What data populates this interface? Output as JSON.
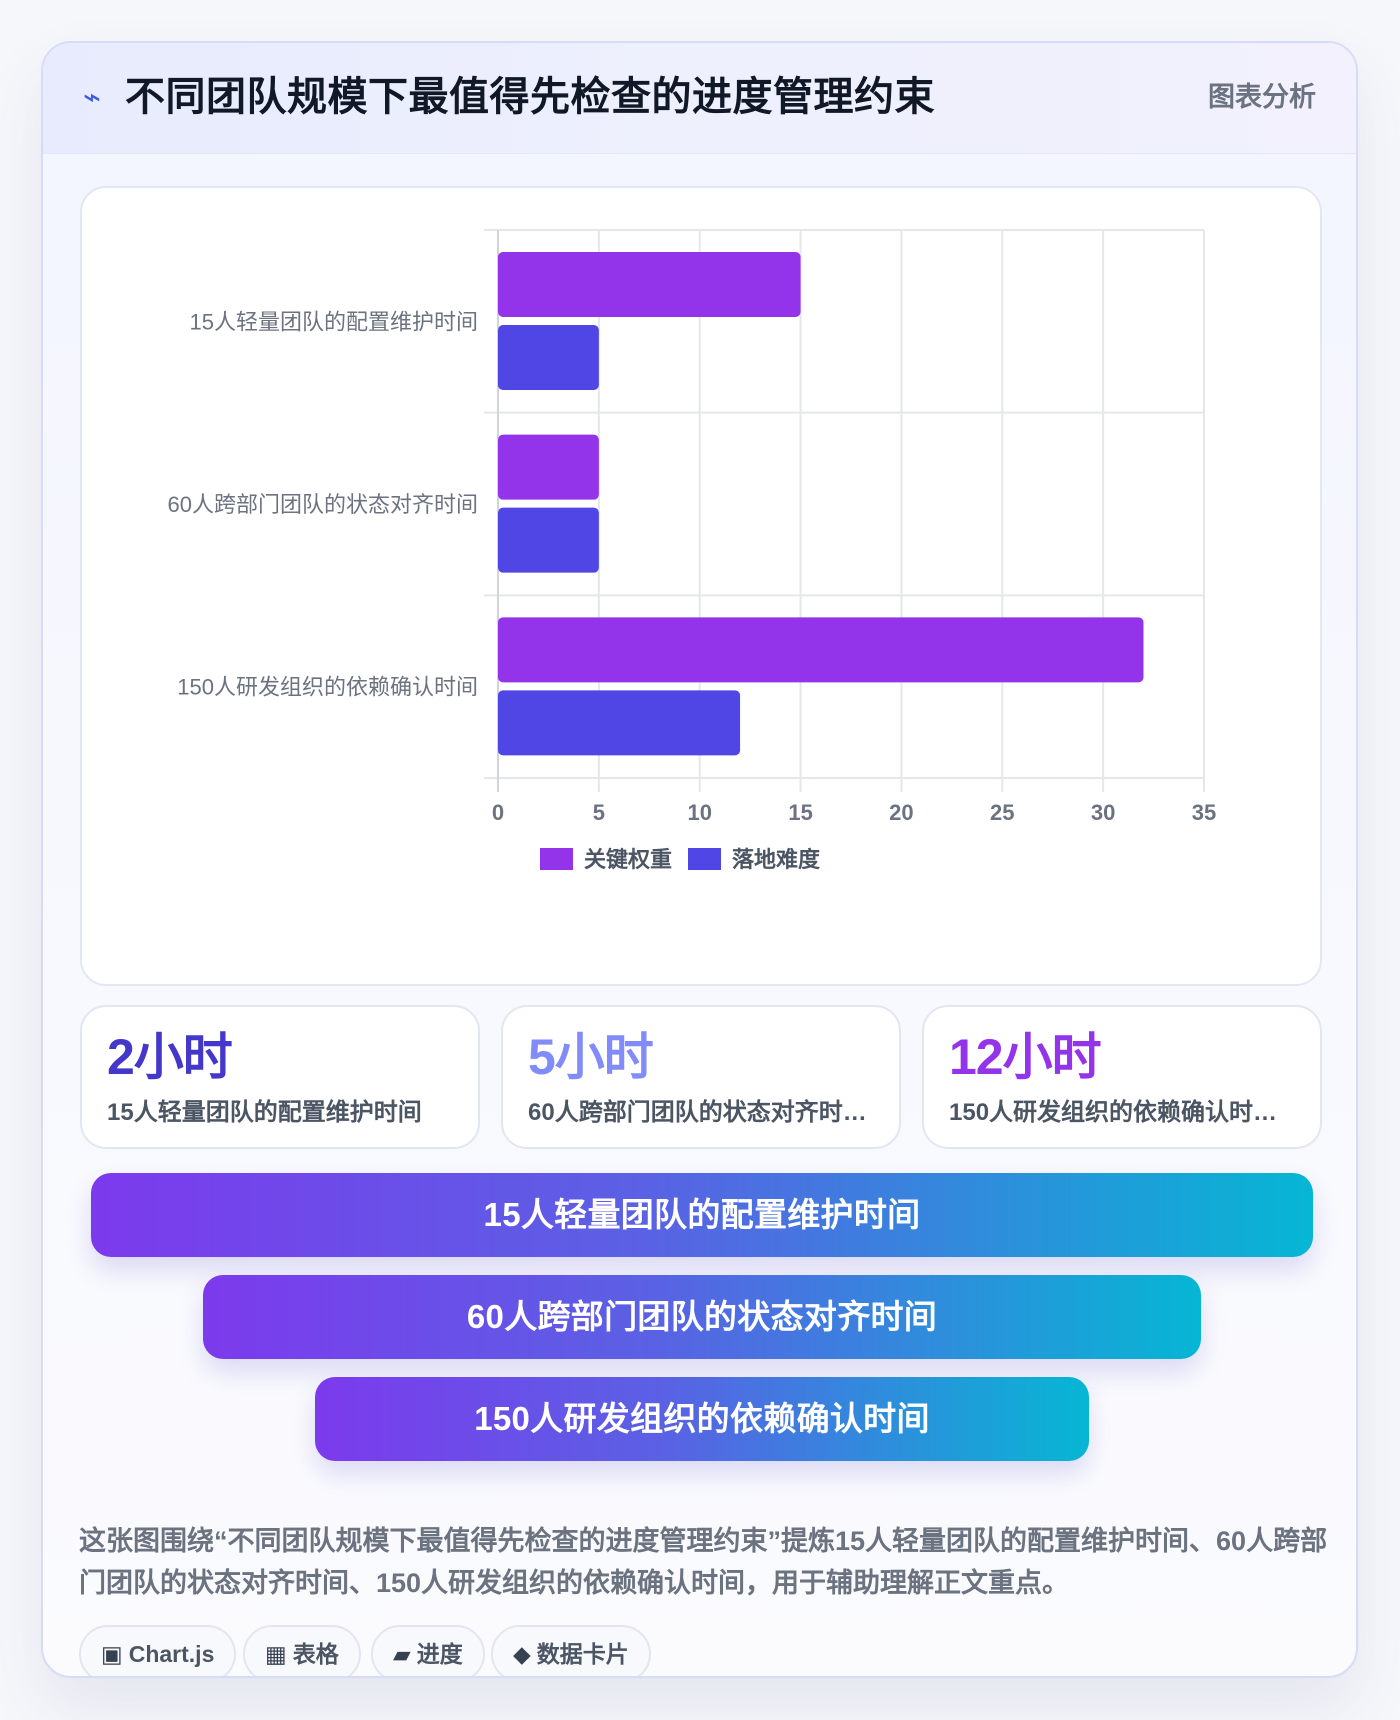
{
  "header": {
    "icon": "lightning-icon",
    "title": "不同团队规模下最值得先检查的进度管理约束",
    "tag": "图表分析"
  },
  "chart_data": {
    "type": "bar",
    "orientation": "horizontal",
    "categories": [
      "15人轻量团队的配置维护时间",
      "60人跨部门团队的状态对齐时间",
      "150人研发组织的依赖确认时间"
    ],
    "series": [
      {
        "name": "关键权重",
        "color": "#9333ea",
        "values": [
          15,
          5,
          32
        ]
      },
      {
        "name": "落地难度",
        "color": "#4f46e5",
        "values": [
          5,
          5,
          12
        ]
      }
    ],
    "xlim": [
      0,
      35
    ],
    "xticks": [
      "0",
      "5",
      "10",
      "15",
      "20",
      "25",
      "30",
      "35"
    ],
    "grid": true,
    "legend_position": "bottom"
  },
  "stats": [
    {
      "value": "2小时",
      "label": "15人轻量团队的配置维护时间",
      "color": "#4338ca"
    },
    {
      "value": "5小时",
      "label": "60人跨部门团队的状态对齐时…",
      "color": "#818cf8"
    },
    {
      "value": "12小时",
      "label": "150人研发组织的依赖确认时…",
      "color": "#9333ea"
    }
  ],
  "pills": [
    {
      "label": "15人轻量团队的配置维护时间"
    },
    {
      "label": "60人跨部门团队的状态对齐时间"
    },
    {
      "label": "150人研发组织的依赖确认时间"
    }
  ],
  "caption": "这张图围绕“不同团队规模下最值得先检查的进度管理约束”提炼15人轻量团队的配置维护时间、60人跨部门团队的状态对齐时间、150人研发组织的依赖确认时间，用于辅助理解正文重点。",
  "tags": [
    {
      "icon": "chart-icon",
      "glyph": "▣",
      "label": "Chart.js"
    },
    {
      "icon": "table-icon",
      "glyph": "▦",
      "label": "表格"
    },
    {
      "icon": "progress-icon",
      "glyph": "▰",
      "label": "进度"
    },
    {
      "icon": "diamond-icon",
      "glyph": "◆",
      "label": "数据卡片"
    }
  ]
}
